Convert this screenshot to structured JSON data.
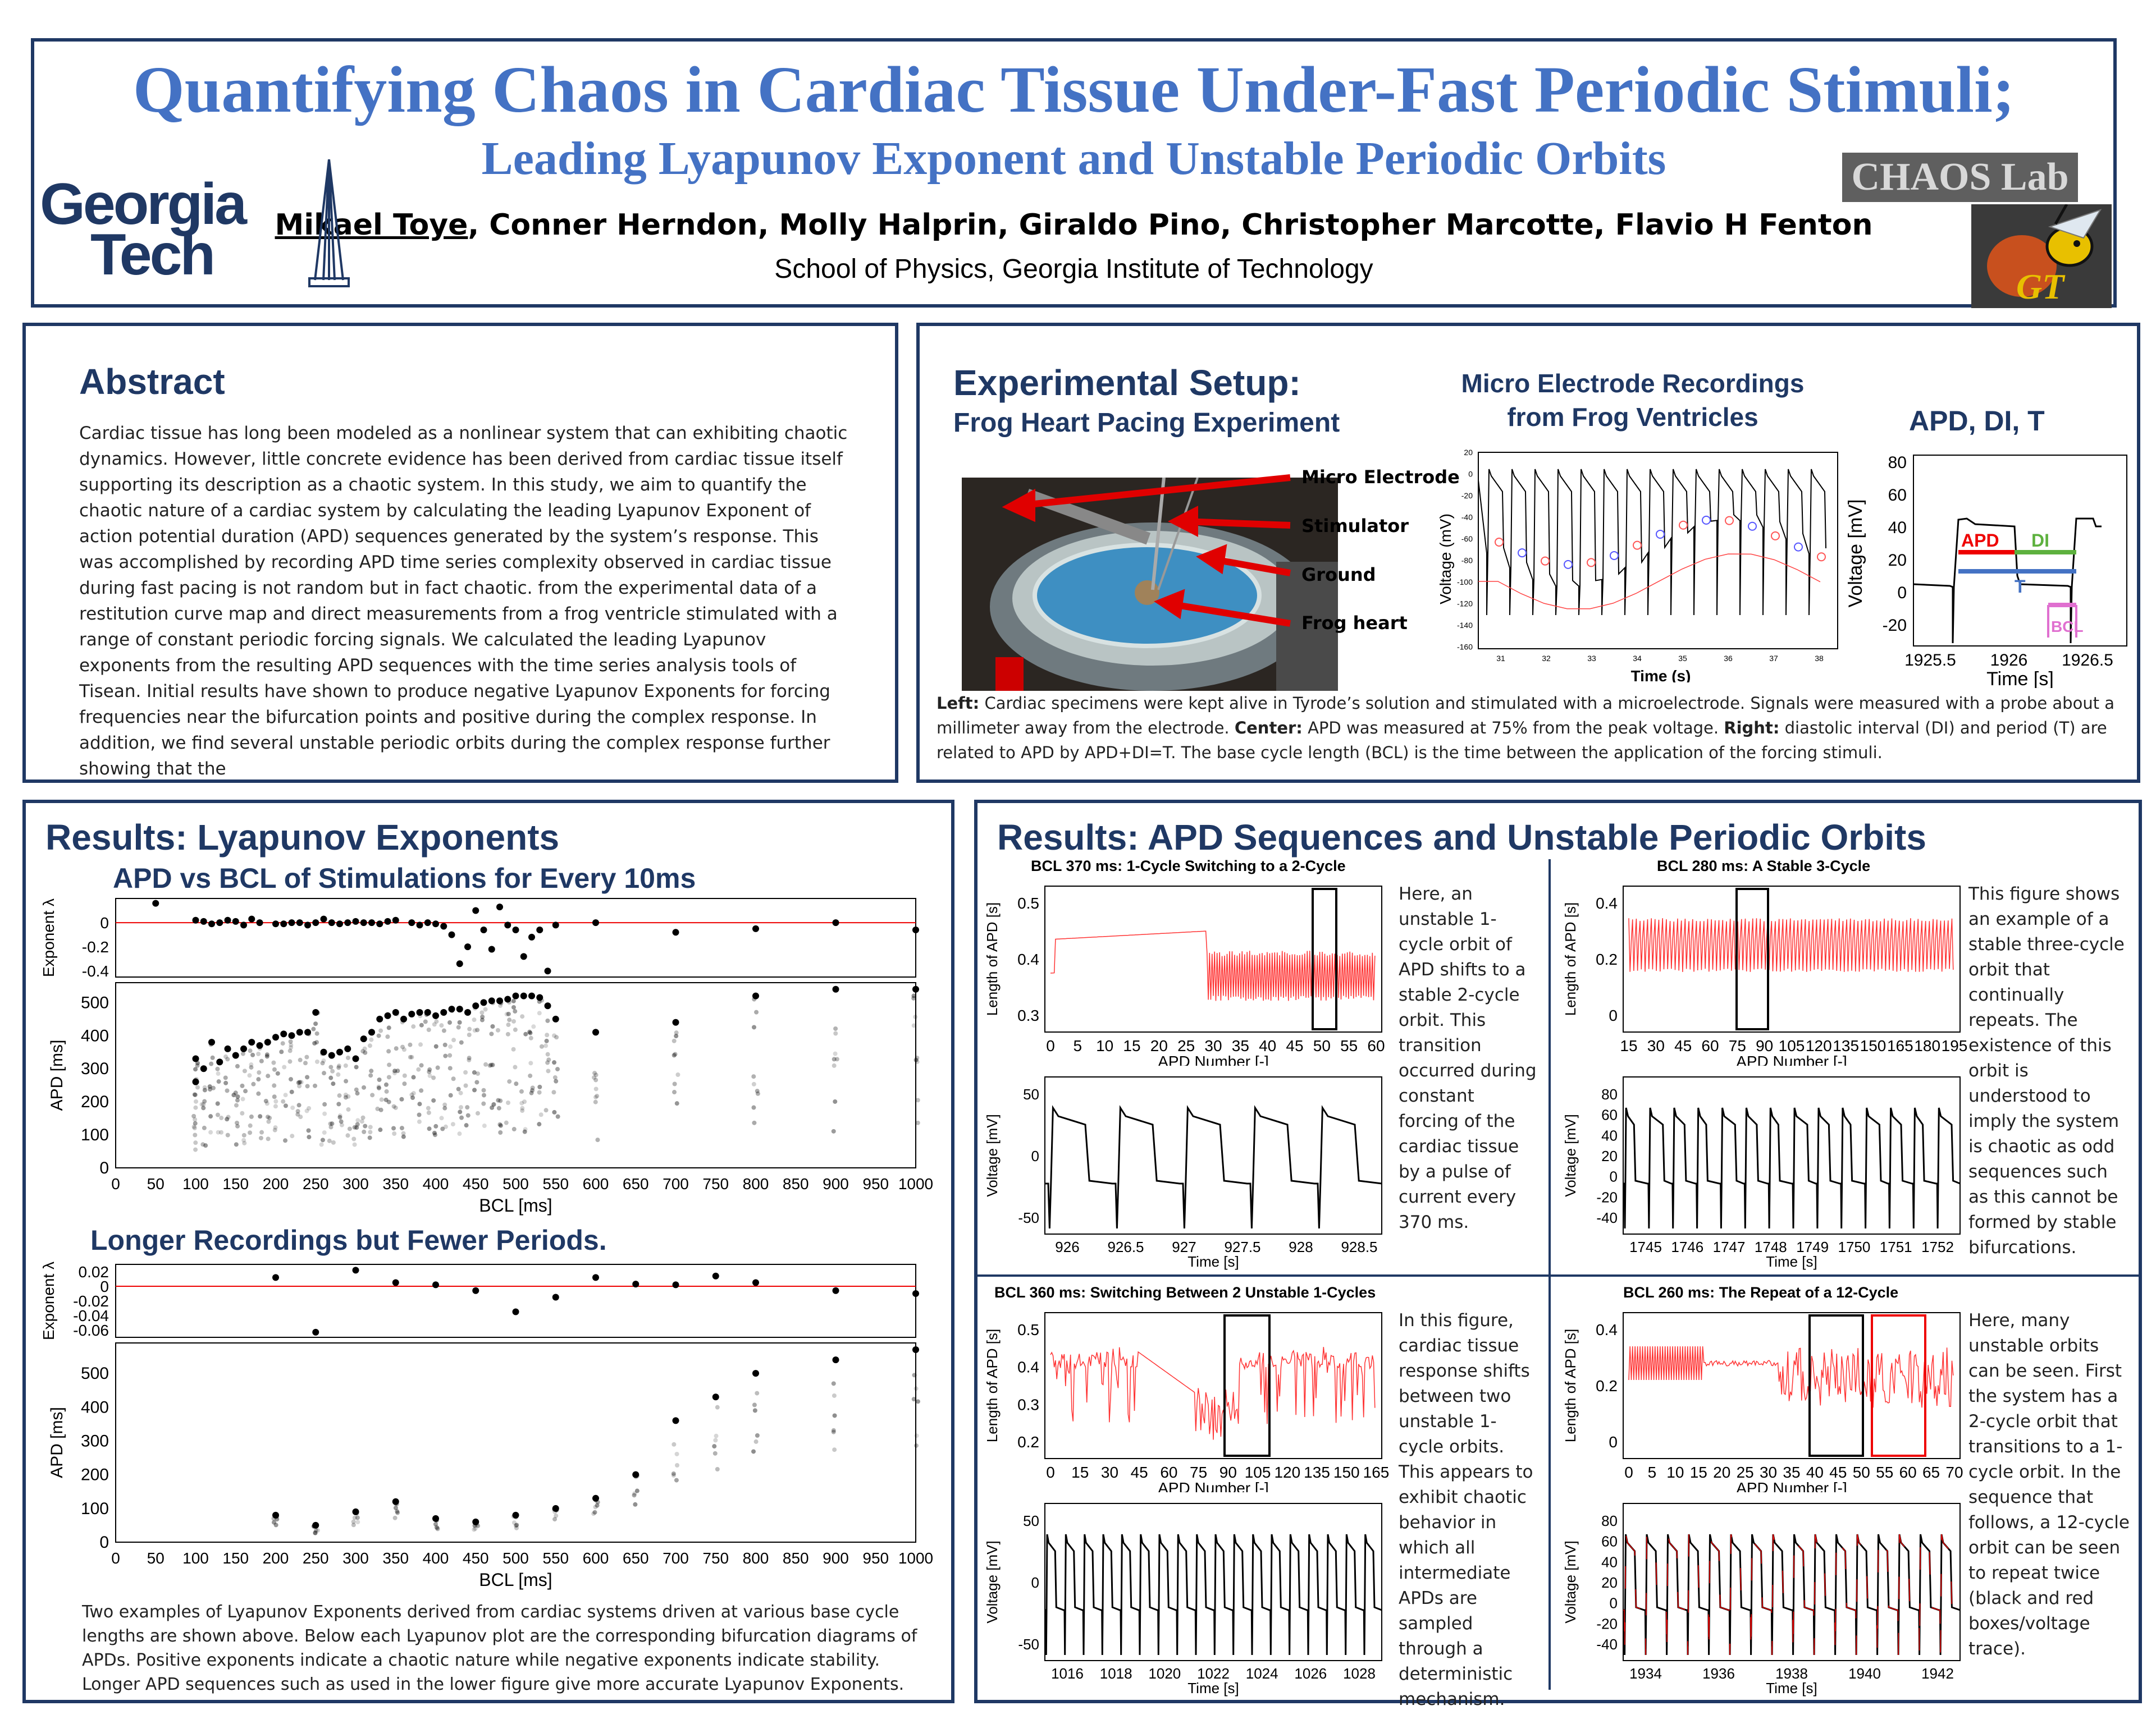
{
  "header": {
    "title": "Quantifying Chaos in Cardiac Tissue Under-Fast Periodic Stimuli;",
    "subtitle": "Leading Lyapunov Exponent and Unstable Periodic Orbits",
    "first_author": "Mikael Toye",
    "other_authors": ", Conner Herndon, Molly Halprin, Giraldo Pino, Christopher Marcotte, Flavio H Fenton",
    "affiliation": "School of Physics, Georgia Institute of Technology",
    "logo_gt_line1": "Georgia",
    "logo_gt_line2": "Tech",
    "logo_chaos": "CHAOS Lab",
    "logo_gt_badge": "GT"
  },
  "abstract": {
    "heading": "Abstract",
    "text": "Cardiac tissue has long been modeled as a nonlinear system that can exhibiting chaotic dynamics.  However, little concrete evidence has been derived from cardiac tissue itself supporting its description as a chaotic system. In this study, we aim to quantify the chaotic nature of a cardiac system by calculating the leading Lyapunov Exponent of action potential duration (APD) sequences generated by the system’s response. This was accomplished by recording APD time series complexity observed in cardiac tissue during fast pacing is not random but in fact chaotic. from the experimental data of a restitution curve map and direct measurements from a frog ventricle stimulated with a range of constant periodic forcing signals. We calculated the leading Lyapunov exponents from the resulting APD sequences with the time series analysis tools of Tisean. Initial results have shown to produce negative Lyapunov Exponents for forcing frequencies near the bifurcation points and positive during the complex response. In addition, we find several unstable periodic orbits during the complex response further showing that the"
  },
  "setup": {
    "heading": "Experimental Setup:",
    "subheading": "Frog Heart Pacing Experiment",
    "labels": [
      "Micro Electrode",
      "Stimulator",
      "Ground",
      "Frog heart"
    ],
    "recordings_title_l1": "Micro Electrode Recordings",
    "recordings_title_l2": "from Frog Ventricles",
    "apd_title": "APD, DI, T",
    "rec_ylabel": "Voltage (mV)",
    "rec_xlabel": "Time (s)",
    "rec_yticks": [
      "20",
      "0",
      "-20",
      "-40",
      "-60",
      "-80",
      "-100",
      "-120",
      "-140",
      "-160"
    ],
    "rec_xticks": [
      "31",
      "32",
      "33",
      "34",
      "35",
      "36",
      "37",
      "38"
    ],
    "apd_ylabel": "Voltage [mV]",
    "apd_xlabel": "Time [s]",
    "apd_yticks": [
      "80",
      "60",
      "40",
      "20",
      "0",
      "-20"
    ],
    "apd_xticks": [
      "1925.5",
      "1926",
      "1926.5"
    ],
    "apd_tags": {
      "apd": "APD",
      "di": "DI",
      "t": "T",
      "bcl": "BCL"
    },
    "caption_left_label": "Left:",
    "caption_left": " Cardiac specimens were kept alive in Tyrode’s solution and stimulated with a microelectrode. Signals were measured with a probe about a millimeter away from the electrode. ",
    "caption_center_label": "Center:",
    "caption_center": " APD was measured at 75% from the peak voltage. ",
    "caption_right_label": "Right:",
    "caption_right": " diastolic interval (DI) and period (T) are related to APD by APD+DI=T. The base cycle length (BCL) is the time between the application of the forcing stimuli."
  },
  "lyap": {
    "heading": "Results: Lyapunov Exponents",
    "sub1": "APD vs BCL of Stimulations for Every 10ms",
    "sub2": "Longer Recordings but Fewer Periods.",
    "exp_ylabel": "Exponent  λ",
    "apd_ylabel": "APD [ms]",
    "xlabel": "BCL [ms]",
    "xticks": [
      "0",
      "50",
      "100",
      "150",
      "200",
      "250",
      "300",
      "350",
      "400",
      "450",
      "500",
      "550",
      "600",
      "650",
      "700",
      "750",
      "800",
      "850",
      "900",
      "950",
      "1000"
    ],
    "top_exp_yticks": [
      "0",
      "-0.2",
      "-0.4"
    ],
    "top_apd_yticks": [
      "500",
      "400",
      "300",
      "200",
      "100",
      "0"
    ],
    "bot_exp_yticks": [
      "0.02",
      "0",
      "-0.02",
      "-0.04",
      "-0.06"
    ],
    "bot_apd_yticks": [
      "500",
      "400",
      "300",
      "200",
      "100",
      "0"
    ],
    "caption": "Two examples of Lyapunov Exponents derived from cardiac systems driven at various base cycle lengths are shown above. Below each Lyapunov plot are the corresponding bifurcation diagrams of APDs. Positive exponents indicate a chaotic nature while negative exponents indicate stability. Longer APD sequences such as used in the lower figure give more accurate Lyapunov Exponents."
  },
  "upo": {
    "heading": "Results: APD Sequences and Unstable Periodic Orbits",
    "apd_ylabel": "Length of APD [s]",
    "apd_xlabel": "APD Number [-]",
    "v_ylabel": "Voltage [mV]",
    "v_xlabel": "Time [s]",
    "p1": {
      "title": "BCL 370 ms: 1-Cycle Switching to a 2-Cycle",
      "yticks": [
        "0.5",
        "0.4",
        "0.3"
      ],
      "xticks": [
        "0",
        "5",
        "10",
        "15",
        "20",
        "25",
        "30",
        "35",
        "40",
        "45",
        "50",
        "55",
        "60"
      ],
      "vyticks": [
        "50",
        "0",
        "-50"
      ],
      "vxticks": [
        "926",
        "926.5",
        "927",
        "927.5",
        "928",
        "928.5"
      ],
      "text": "Here, an unstable 1-cycle orbit of APD shifts to a stable 2-cycle orbit. This transition occurred during constant forcing of the cardiac tissue by a pulse of current every 370 ms."
    },
    "p2": {
      "title": "BCL 280 ms: A Stable 3-Cycle",
      "yticks": [
        "0.4",
        "0.2",
        "0"
      ],
      "xticks": [
        "15",
        "30",
        "45",
        "60",
        "75",
        "90",
        "105",
        "120",
        "135",
        "150",
        "165",
        "180",
        "195"
      ],
      "vyticks": [
        "80",
        "60",
        "40",
        "20",
        "0",
        "-20",
        "-40"
      ],
      "vxticks": [
        "1745",
        "1746",
        "1747",
        "1748",
        "1749",
        "1750",
        "1751",
        "1752"
      ],
      "text": "This figure shows an example of a stable three-cycle orbit that continually repeats. The existence of this orbit is understood to imply the system is chaotic as odd sequences such as this cannot be formed by stable bifurcations."
    },
    "p3": {
      "title": "BCL 360 ms: Switching Between 2 Unstable 1-Cycles",
      "yticks": [
        "0.5",
        "0.4",
        "0.3",
        "0.2"
      ],
      "xticks": [
        "0",
        "15",
        "30",
        "45",
        "60",
        "75",
        "90",
        "105",
        "120",
        "135",
        "150",
        "165"
      ],
      "vyticks": [
        "50",
        "0",
        "-50"
      ],
      "vxticks": [
        "1016",
        "1018",
        "1020",
        "1022",
        "1024",
        "1026",
        "1028"
      ],
      "text": "In this figure, cardiac tissue response shifts between two unstable 1-cycle orbits. This appears to exhibit chaotic behavior in which all intermediate APDs are sampled through a deterministic mechanism."
    },
    "p4": {
      "title": "BCL 260 ms: The Repeat of a 12-Cycle",
      "yticks": [
        "0.4",
        "0.2",
        "0"
      ],
      "xticks": [
        "0",
        "5",
        "10",
        "15",
        "20",
        "25",
        "30",
        "35",
        "40",
        "45",
        "50",
        "55",
        "60",
        "65",
        "70"
      ],
      "vyticks": [
        "80",
        "60",
        "40",
        "20",
        "0",
        "-20",
        "-40"
      ],
      "vxticks": [
        "1934",
        "1936",
        "1938",
        "1940",
        "1942"
      ],
      "text": "Here, many unstable orbits can be seen. First the system has a 2-cycle orbit that transitions to a 1-cycle orbit. In the sequence that follows, a 12-cycle orbit can be seen to repeat twice (black and red boxes/voltage trace)."
    }
  },
  "chart_data": [
    {
      "type": "scatter",
      "title": "APD vs BCL of Stimulations for Every 10ms (Lyapunov exponent)",
      "xlabel": "BCL [ms]",
      "ylabel": "Exponent λ",
      "xlim": [
        0,
        1000
      ],
      "ylim": [
        -0.4,
        0.2
      ],
      "x": [
        50,
        100,
        110,
        120,
        130,
        140,
        150,
        160,
        170,
        180,
        200,
        210,
        220,
        230,
        240,
        250,
        260,
        270,
        280,
        290,
        300,
        310,
        320,
        330,
        340,
        350,
        370,
        380,
        390,
        400,
        410,
        420,
        430,
        440,
        450,
        460,
        470,
        480,
        490,
        500,
        510,
        520,
        530,
        540,
        550,
        600,
        700,
        800,
        900,
        1000
      ],
      "y": [
        0.16,
        0.02,
        0.01,
        -0.01,
        0.0,
        0.02,
        0.01,
        -0.02,
        0.03,
        0.0,
        -0.01,
        -0.01,
        0.0,
        0.0,
        -0.02,
        0.0,
        0.03,
        0.0,
        -0.01,
        0.0,
        0.01,
        0.0,
        0.0,
        -0.01,
        0.01,
        0.02,
        0.0,
        -0.02,
        0.0,
        -0.01,
        -0.03,
        -0.1,
        -0.34,
        -0.2,
        0.1,
        -0.06,
        -0.22,
        0.13,
        -0.02,
        -0.06,
        -0.28,
        -0.12,
        -0.06,
        -0.4,
        -0.02,
        0.0,
        -0.08,
        -0.05,
        0.0,
        -0.06
      ]
    },
    {
      "type": "scatter",
      "title": "APD vs BCL (bifurcation diagram, upper)",
      "xlabel": "BCL [ms]",
      "ylabel": "APD [ms]",
      "xlim": [
        0,
        1000
      ],
      "ylim": [
        0,
        550
      ],
      "x": [
        100,
        100,
        110,
        120,
        130,
        140,
        150,
        160,
        170,
        180,
        190,
        200,
        210,
        220,
        230,
        240,
        250,
        260,
        270,
        280,
        290,
        300,
        310,
        320,
        330,
        340,
        350,
        360,
        370,
        380,
        390,
        400,
        410,
        420,
        430,
        440,
        450,
        460,
        470,
        480,
        490,
        500,
        510,
        520,
        530,
        540,
        550,
        600,
        700,
        800,
        900,
        1000
      ],
      "y": [
        330,
        260,
        300,
        380,
        320,
        360,
        340,
        360,
        380,
        370,
        380,
        395,
        405,
        400,
        410,
        410,
        470,
        350,
        340,
        350,
        360,
        330,
        390,
        410,
        450,
        460,
        470,
        450,
        465,
        470,
        470,
        460,
        470,
        480,
        480,
        470,
        490,
        500,
        505,
        505,
        510,
        520,
        520,
        520,
        515,
        490,
        450,
        410,
        440,
        520,
        540,
        540
      ]
    },
    {
      "type": "scatter",
      "title": "Longer Recordings but Fewer Periods. (Lyapunov exponent)",
      "xlabel": "BCL [ms]",
      "ylabel": "Exponent λ",
      "xlim": [
        0,
        1000
      ],
      "ylim": [
        -0.07,
        0.03
      ],
      "x": [
        200,
        250,
        300,
        350,
        400,
        450,
        500,
        550,
        600,
        650,
        700,
        750,
        800,
        900,
        1000
      ],
      "y": [
        0.012,
        -0.063,
        0.022,
        0.005,
        0.002,
        -0.006,
        -0.035,
        -0.015,
        0.012,
        0.003,
        0.002,
        0.014,
        0.005,
        -0.006,
        -0.01
      ]
    },
    {
      "type": "scatter",
      "title": "Longer Recordings (bifurcation diagram, lower)",
      "xlabel": "BCL [ms]",
      "ylabel": "APD [ms]",
      "xlim": [
        0,
        1000
      ],
      "ylim": [
        0,
        580
      ],
      "x": [
        200,
        250,
        300,
        350,
        400,
        450,
        500,
        550,
        600,
        650,
        700,
        750,
        800,
        900,
        1000
      ],
      "y": [
        80,
        50,
        90,
        120,
        70,
        60,
        80,
        100,
        130,
        200,
        360,
        430,
        500,
        540,
        570
      ]
    }
  ]
}
